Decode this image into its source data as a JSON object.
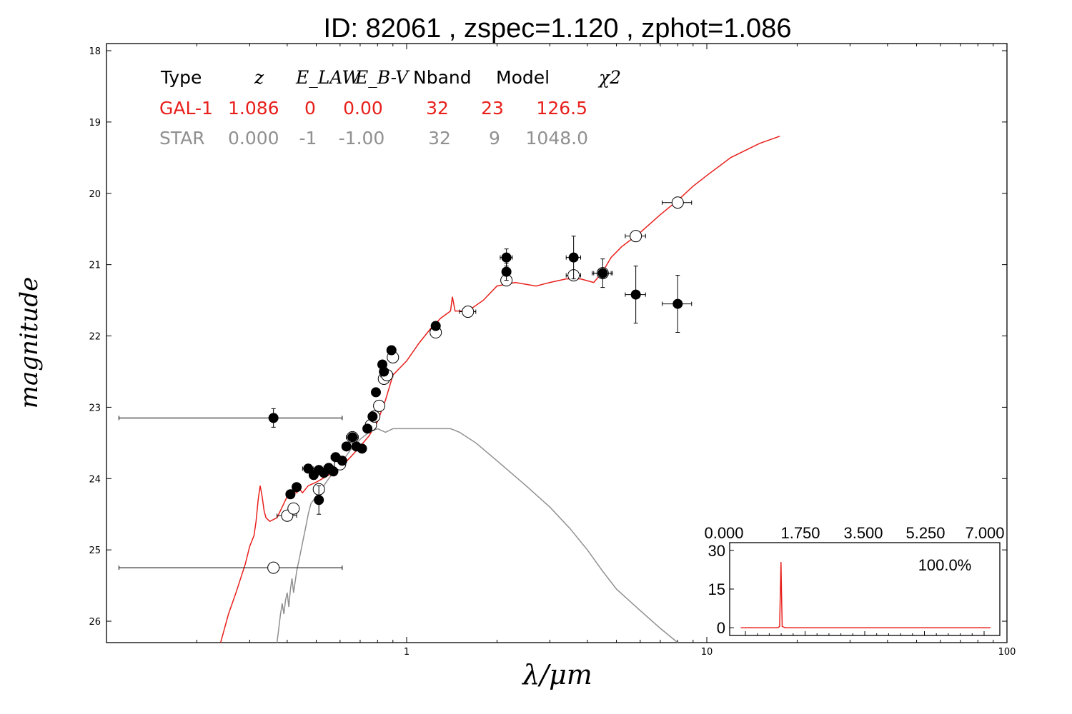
{
  "chart_data": [
    {
      "type": "scatter",
      "title": "ID:  82061 , zspec=1.120 , zphot=1.086",
      "xlabel": "λ/μm",
      "ylabel": "magnitude",
      "xscale": "log",
      "xlim": [
        0.1,
        100
      ],
      "ylim": [
        26.3,
        17.9
      ],
      "y_inverted": true,
      "yticks": [
        18,
        19,
        20,
        21,
        22,
        23,
        24,
        25,
        26
      ],
      "xticks": [
        1,
        10,
        100
      ],
      "fit_table": {
        "headers": [
          "Type",
          "z",
          "E_LAW",
          "E_B-V",
          "Nband",
          "Model",
          "χ2"
        ],
        "rows": [
          {
            "label": "GAL-1",
            "z": "1.086",
            "elaw": "0",
            "ebv": "0.00",
            "nband": "32",
            "model": "23",
            "chi2": "126.5",
            "color": "#e8201c"
          },
          {
            "label": "STAR",
            "z": "0.000",
            "elaw": "-1",
            "ebv": "-1.00",
            "nband": "32",
            "model": "9",
            "chi2": "1048.0",
            "color": "#909090"
          }
        ]
      },
      "series": [
        {
          "name": "GAL-1",
          "kind": "line",
          "color": "#e8201c",
          "points": [
            [
              0.24,
              26.3
            ],
            [
              0.255,
              25.9
            ],
            [
              0.27,
              25.6
            ],
            [
              0.29,
              25.2
            ],
            [
              0.3,
              24.95
            ],
            [
              0.31,
              24.8
            ],
            [
              0.315,
              24.6
            ],
            [
              0.32,
              24.3
            ],
            [
              0.325,
              24.1
            ],
            [
              0.33,
              24.25
            ],
            [
              0.335,
              24.45
            ],
            [
              0.34,
              24.55
            ],
            [
              0.35,
              24.6
            ],
            [
              0.37,
              24.55
            ],
            [
              0.39,
              24.35
            ],
            [
              0.4,
              24.25
            ],
            [
              0.42,
              24.2
            ],
            [
              0.43,
              24.2
            ],
            [
              0.44,
              24.15
            ],
            [
              0.45,
              24.2
            ],
            [
              0.47,
              24.1
            ],
            [
              0.5,
              24.05
            ],
            [
              0.55,
              23.95
            ],
            [
              0.6,
              23.85
            ],
            [
              0.65,
              23.7
            ],
            [
              0.7,
              23.55
            ],
            [
              0.75,
              23.4
            ],
            [
              0.8,
              23.2
            ],
            [
              0.85,
              22.9
            ],
            [
              0.9,
              22.55
            ],
            [
              1.0,
              22.35
            ],
            [
              1.1,
              22.1
            ],
            [
              1.2,
              21.9
            ],
            [
              1.3,
              21.75
            ],
            [
              1.4,
              21.65
            ],
            [
              1.42,
              21.45
            ],
            [
              1.45,
              21.65
            ],
            [
              1.6,
              21.65
            ],
            [
              1.8,
              21.5
            ],
            [
              2.0,
              21.3
            ],
            [
              2.3,
              21.25
            ],
            [
              2.7,
              21.3
            ],
            [
              3.0,
              21.25
            ],
            [
              3.4,
              21.2
            ],
            [
              3.8,
              21.2
            ],
            [
              4.2,
              21.25
            ],
            [
              4.5,
              21.1
            ],
            [
              4.8,
              20.9
            ],
            [
              5.2,
              20.75
            ],
            [
              6.0,
              20.55
            ],
            [
              7.0,
              20.3
            ],
            [
              8.0,
              20.1
            ],
            [
              9.0,
              19.9
            ],
            [
              10.0,
              19.75
            ],
            [
              12.0,
              19.5
            ],
            [
              15.0,
              19.3
            ],
            [
              17.5,
              19.2
            ]
          ]
        },
        {
          "name": "STAR",
          "kind": "line",
          "color": "#909090",
          "points": [
            [
              0.37,
              26.3
            ],
            [
              0.375,
              26.1
            ],
            [
              0.38,
              25.9
            ],
            [
              0.385,
              25.75
            ],
            [
              0.39,
              25.9
            ],
            [
              0.395,
              25.7
            ],
            [
              0.4,
              25.6
            ],
            [
              0.405,
              25.8
            ],
            [
              0.41,
              25.55
            ],
            [
              0.415,
              25.4
            ],
            [
              0.42,
              25.6
            ],
            [
              0.43,
              25.3
            ],
            [
              0.44,
              25.1
            ],
            [
              0.45,
              24.9
            ],
            [
              0.46,
              24.7
            ],
            [
              0.47,
              24.5
            ],
            [
              0.48,
              24.35
            ],
            [
              0.5,
              24.25
            ],
            [
              0.55,
              24.0
            ],
            [
              0.6,
              23.8
            ],
            [
              0.65,
              23.6
            ],
            [
              0.7,
              23.45
            ],
            [
              0.75,
              23.35
            ],
            [
              0.8,
              23.3
            ],
            [
              0.85,
              23.35
            ],
            [
              0.9,
              23.3
            ],
            [
              1.0,
              23.3
            ],
            [
              1.2,
              23.3
            ],
            [
              1.4,
              23.3
            ],
            [
              1.5,
              23.35
            ],
            [
              1.7,
              23.5
            ],
            [
              2.0,
              23.75
            ],
            [
              2.5,
              24.1
            ],
            [
              3.0,
              24.4
            ],
            [
              3.5,
              24.7
            ],
            [
              4.0,
              25.0
            ],
            [
              4.5,
              25.3
            ],
            [
              5.0,
              25.55
            ],
            [
              6.0,
              25.85
            ],
            [
              7.0,
              26.1
            ],
            [
              8.0,
              26.3
            ]
          ]
        },
        {
          "name": "observed",
          "kind": "points",
          "marker": "filled",
          "color": "#000000",
          "points": [
            [
              0.36,
              23.15,
              0.25,
              0.13
            ],
            [
              0.41,
              24.22,
              0,
              0.02
            ],
            [
              0.43,
              24.12,
              0,
              0.02
            ],
            [
              0.47,
              23.86,
              0.02,
              0.04
            ],
            [
              0.49,
              23.95,
              0,
              0.06
            ],
            [
              0.51,
              23.88,
              0.02,
              0.04
            ],
            [
              0.51,
              24.3,
              0,
              0.2
            ],
            [
              0.53,
              23.92,
              0,
              0.04
            ],
            [
              0.55,
              23.85,
              0.02,
              0.04
            ],
            [
              0.57,
              23.9,
              0,
              0.04
            ],
            [
              0.58,
              23.7,
              0.02,
              0.04
            ],
            [
              0.61,
              23.75,
              0,
              0.04
            ],
            [
              0.63,
              23.55,
              0.02,
              0.04
            ],
            [
              0.66,
              23.42,
              0.03,
              0.04
            ],
            [
              0.68,
              23.55,
              0,
              0.04
            ],
            [
              0.71,
              23.58,
              0.02,
              0.04
            ],
            [
              0.74,
              23.3,
              0,
              0.04
            ],
            [
              0.77,
              23.13,
              0.02,
              0.05
            ],
            [
              0.79,
              22.79,
              0,
              0.06
            ],
            [
              0.83,
              22.4,
              0.02,
              0.05
            ],
            [
              0.84,
              22.5,
              0,
              0.06
            ],
            [
              0.89,
              22.2,
              0.03,
              0.06
            ],
            [
              1.25,
              21.86,
              0,
              0.06
            ],
            [
              2.15,
              20.9,
              0.1,
              0.12
            ],
            [
              2.15,
              21.1,
              0,
              0.12
            ],
            [
              3.6,
              20.9,
              0.2,
              0.3
            ],
            [
              4.5,
              21.12,
              0.35,
              0.2
            ],
            [
              5.8,
              21.42,
              0.45,
              0.4
            ],
            [
              8.0,
              21.55,
              0.9,
              0.4
            ]
          ]
        },
        {
          "name": "model",
          "kind": "points",
          "marker": "open",
          "color": "#000000",
          "points": [
            [
              0.36,
              25.25,
              0.25,
              0
            ],
            [
              0.4,
              24.52,
              0.03,
              0
            ],
            [
              0.42,
              24.42,
              0,
              0
            ],
            [
              0.51,
              24.15,
              0,
              0
            ],
            [
              0.6,
              23.8,
              0,
              0
            ],
            [
              0.66,
              23.42,
              0,
              0
            ],
            [
              0.76,
              23.25,
              0,
              0
            ],
            [
              0.78,
              23.13,
              0,
              0
            ],
            [
              0.81,
              22.98,
              0,
              0
            ],
            [
              0.84,
              22.6,
              0,
              0
            ],
            [
              0.86,
              22.55,
              0.04,
              0
            ],
            [
              0.9,
              22.3,
              0,
              0
            ],
            [
              1.25,
              21.95,
              0.05,
              0
            ],
            [
              1.6,
              21.66,
              0.1,
              0
            ],
            [
              2.15,
              21.22,
              0,
              0
            ],
            [
              3.6,
              21.15,
              0.2,
              0
            ],
            [
              4.5,
              21.12,
              0.3,
              0
            ],
            [
              5.8,
              20.6,
              0.45,
              0
            ],
            [
              8.0,
              20.13,
              0.9,
              0
            ]
          ]
        }
      ]
    },
    {
      "type": "line",
      "title": "",
      "xlabel": "",
      "ylabel": "",
      "label": "100.0%",
      "xlim": [
        -0.3,
        7.0
      ],
      "ylim": [
        -3,
        33
      ],
      "xticks": [
        "0.000",
        "1.750",
        "3.500",
        "5.250",
        "7.000"
      ],
      "yticks": [
        "0",
        "15",
        "30"
      ],
      "series": [
        {
          "color": "#e8201c",
          "points": [
            [
              0,
              0
            ],
            [
              1.0,
              0
            ],
            [
              1.05,
              0.5
            ],
            [
              1.07,
              14
            ],
            [
              1.086,
              25.5
            ],
            [
              1.1,
              14
            ],
            [
              1.12,
              0.5
            ],
            [
              1.2,
              0
            ],
            [
              6.75,
              0
            ]
          ]
        }
      ]
    }
  ]
}
